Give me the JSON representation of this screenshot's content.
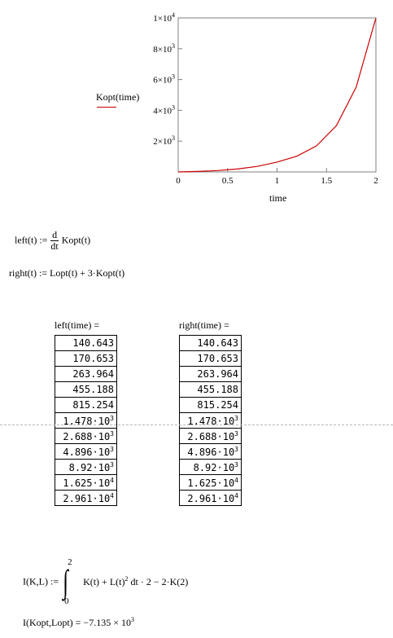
{
  "plot": {
    "legend_label": "Kopt(time)",
    "xlabel": "time",
    "x_ticks": [
      "0",
      "0.5",
      "1",
      "1.5",
      "2"
    ],
    "y_ticks": [
      {
        "mant": "1×10",
        "exp": "4"
      },
      {
        "mant": "8×10",
        "exp": "3"
      },
      {
        "mant": "6×10",
        "exp": "3"
      },
      {
        "mant": "4×10",
        "exp": "3"
      },
      {
        "mant": "2×10",
        "exp": "3"
      }
    ],
    "series_color": "#cc0000"
  },
  "chart_data": {
    "type": "line",
    "title": "",
    "xlabel": "time",
    "ylabel": "Kopt(time)",
    "xlim": [
      0,
      2
    ],
    "ylim": [
      0,
      10000
    ],
    "grid": false,
    "series": [
      {
        "name": "Kopt(time)",
        "x": [
          0,
          0.2,
          0.4,
          0.6,
          0.8,
          1.0,
          1.2,
          1.4,
          1.6,
          1.8,
          2.0
        ],
        "y": [
          0,
          30,
          90,
          190,
          360,
          640,
          1020,
          1700,
          3000,
          5500,
          10000
        ]
      }
    ]
  },
  "defs": {
    "left_lhs": "left(t) :=",
    "left_frac_num": "d",
    "left_frac_den": "dt",
    "left_rhs": "Kopt(t)",
    "right_lhs": "right(t) :=",
    "right_rhs": "Lopt(t) + 3·Kopt(t)"
  },
  "tables": {
    "left_header": "left(time) =",
    "right_header": "right(time) =",
    "left_values": [
      "140.643",
      "170.653",
      "263.964",
      "455.188",
      "815.254",
      "1.478·10",
      "2.688·10",
      "4.896·10",
      "8.92·10",
      "1.625·10",
      "2.961·10"
    ],
    "left_exps": [
      "",
      "",
      "",
      "",
      "",
      "3",
      "3",
      "3",
      "3",
      "4",
      "4"
    ],
    "right_values": [
      "140.643",
      "170.653",
      "263.964",
      "455.188",
      "815.254",
      "1.478·10",
      "2.688·10",
      "4.896·10",
      "8.92·10",
      "1.625·10",
      "2.961·10"
    ],
    "right_exps": [
      "",
      "",
      "",
      "",
      "",
      "3",
      "3",
      "3",
      "3",
      "4",
      "4"
    ]
  },
  "integral": {
    "lhs": "I(K,L) :=",
    "upper": "2",
    "lower": "0",
    "body": "K(t) + L(t)",
    "body_exp": "2",
    "tail": " dt · 2 − 2·K(2)"
  },
  "result": {
    "text": "I(Kopt,Lopt) = −7.135 × 10",
    "exp": "3"
  }
}
